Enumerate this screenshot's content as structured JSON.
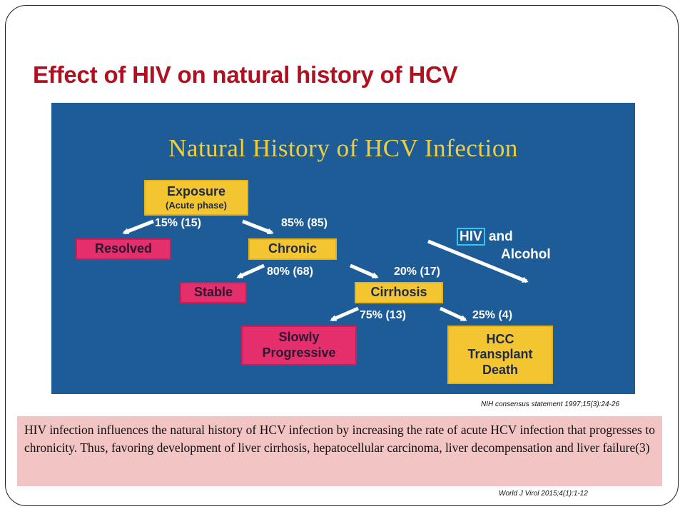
{
  "slide": {
    "title": "Effect of HIV on natural history of HCV",
    "diagram": {
      "title": "Natural History of HCV Infection",
      "nodes": {
        "exposure": {
          "label": "Exposure",
          "sublabel": "(Acute phase)"
        },
        "resolved": {
          "label": "Resolved"
        },
        "chronic": {
          "label": "Chronic"
        },
        "stable": {
          "label": "Stable"
        },
        "cirrhosis": {
          "label": "Cirrhosis"
        },
        "slowly_progressive": {
          "label": "Slowly Progressive"
        },
        "hcc": {
          "line1": "HCC",
          "line2": "Transplant",
          "line3": "Death"
        }
      },
      "edges": {
        "to_resolved": "15% (15)",
        "to_chronic": "85% (85)",
        "to_stable": "80% (68)",
        "to_cirrhosis": "20% (17)",
        "to_slowly_progressive": "75% (13)",
        "to_hcc": "25% (4)"
      },
      "cofactors": {
        "hiv": "HIV",
        "and": "and",
        "alcohol": "Alcohol"
      },
      "colors": {
        "background": "#1d5c97",
        "title": "#f1cf3a",
        "yellow_box": "#f3c530",
        "pink_box": "#e52e6c",
        "hiv_outline": "#35c6f0"
      }
    },
    "citation_diagram": "NIH consensus statement 1997;15(3):24-26",
    "note_text": "HIV infection influences the natural history of HCV infection by increasing the rate of acute HCV infection that progresses to chronicity. Thus, favoring development of liver cirrhosis, hepatocellular carcinoma, liver decompensation and liver failure(3)",
    "citation_note": "World J Virol 2015;4(1):1-12",
    "colors": {
      "title": "#b01020",
      "note_background": "#f2c4c4"
    }
  }
}
